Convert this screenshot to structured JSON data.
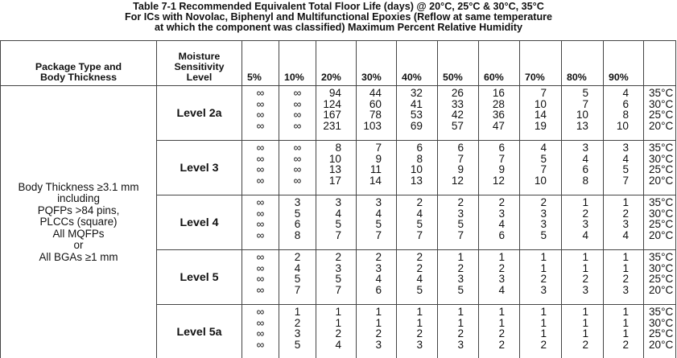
{
  "title": {
    "line1": "Table 7-1   Recommended Equivalent Total Floor Life (days) @ 20°C, 25°C & 30°C, 35°C",
    "line2": "For ICs with Novolac, Biphenyl and Multifunctional Epoxies (Reflow at same temperature",
    "line3": "at which the component was classified) Maximum Percent Relative Humidity"
  },
  "header": {
    "package_col": "Package Type and Body Thickness",
    "msl_col": "Moisture Sensitivity Level",
    "percents": [
      "5%",
      "10%",
      "20%",
      "30%",
      "40%",
      "50%",
      "60%",
      "70%",
      "80%",
      "90%"
    ]
  },
  "package": {
    "line1": "Body Thickness ≥3.1 mm",
    "line2": "including",
    "line3": "PQFPs >84 pins,",
    "line4": "PLCCs (square)",
    "line5": "All MQFPs",
    "line6": "or",
    "line7": "All BGAs ≥1 mm"
  },
  "temps": [
    "35°C",
    "30°C",
    "25°C",
    "20°C"
  ],
  "levels": [
    {
      "name": "Level 2a",
      "cols": [
        [
          "∞",
          "∞",
          "∞",
          "∞"
        ],
        [
          "∞",
          "∞",
          "∞",
          "∞"
        ],
        [
          "94",
          "124",
          "167",
          "231"
        ],
        [
          "44",
          "60",
          "78",
          "103"
        ],
        [
          "32",
          "41",
          "53",
          "69"
        ],
        [
          "26",
          "33",
          "42",
          "57"
        ],
        [
          "16",
          "28",
          "36",
          "47"
        ],
        [
          "7",
          "10",
          "14",
          "19"
        ],
        [
          "5",
          "7",
          "10",
          "13"
        ],
        [
          "4",
          "6",
          "8",
          "10"
        ]
      ]
    },
    {
      "name": "Level 3",
      "cols": [
        [
          "∞",
          "∞",
          "∞",
          "∞"
        ],
        [
          "∞",
          "∞",
          "∞",
          "∞"
        ],
        [
          "8",
          "10",
          "13",
          "17"
        ],
        [
          "7",
          "9",
          "11",
          "14"
        ],
        [
          "6",
          "8",
          "10",
          "13"
        ],
        [
          "6",
          "7",
          "9",
          "12"
        ],
        [
          "6",
          "7",
          "9",
          "12"
        ],
        [
          "4",
          "5",
          "7",
          "10"
        ],
        [
          "3",
          "4",
          "6",
          "8"
        ],
        [
          "3",
          "4",
          "5",
          "7"
        ]
      ]
    },
    {
      "name": "Level 4",
      "cols": [
        [
          "∞",
          "∞",
          "∞",
          "∞"
        ],
        [
          "3",
          "5",
          "6",
          "8"
        ],
        [
          "3",
          "4",
          "5",
          "7"
        ],
        [
          "3",
          "4",
          "5",
          "7"
        ],
        [
          "2",
          "4",
          "5",
          "7"
        ],
        [
          "2",
          "3",
          "5",
          "7"
        ],
        [
          "2",
          "3",
          "4",
          "6"
        ],
        [
          "2",
          "3",
          "3",
          "5"
        ],
        [
          "1",
          "2",
          "3",
          "4"
        ],
        [
          "1",
          "2",
          "3",
          "4"
        ]
      ]
    },
    {
      "name": "Level 5",
      "cols": [
        [
          "∞",
          "∞",
          "∞",
          "∞"
        ],
        [
          "2",
          "4",
          "5",
          "7"
        ],
        [
          "2",
          "3",
          "5",
          "7"
        ],
        [
          "2",
          "3",
          "4",
          "6"
        ],
        [
          "2",
          "2",
          "4",
          "5"
        ],
        [
          "1",
          "2",
          "3",
          "5"
        ],
        [
          "1",
          "2",
          "3",
          "4"
        ],
        [
          "1",
          "1",
          "2",
          "3"
        ],
        [
          "1",
          "1",
          "2",
          "3"
        ],
        [
          "1",
          "1",
          "2",
          "3"
        ]
      ]
    },
    {
      "name": "Level 5a",
      "cols": [
        [
          "∞",
          "∞",
          "∞",
          "∞"
        ],
        [
          "1",
          "2",
          "3",
          "5"
        ],
        [
          "1",
          "1",
          "2",
          "4"
        ],
        [
          "1",
          "1",
          "2",
          "3"
        ],
        [
          "1",
          "1",
          "2",
          "3"
        ],
        [
          "1",
          "1",
          "2",
          "3"
        ],
        [
          "1",
          "1",
          "2",
          "2"
        ],
        [
          "1",
          "1",
          "1",
          "2"
        ],
        [
          "1",
          "1",
          "1",
          "2"
        ],
        [
          "1",
          "1",
          "1",
          "2"
        ]
      ]
    }
  ]
}
